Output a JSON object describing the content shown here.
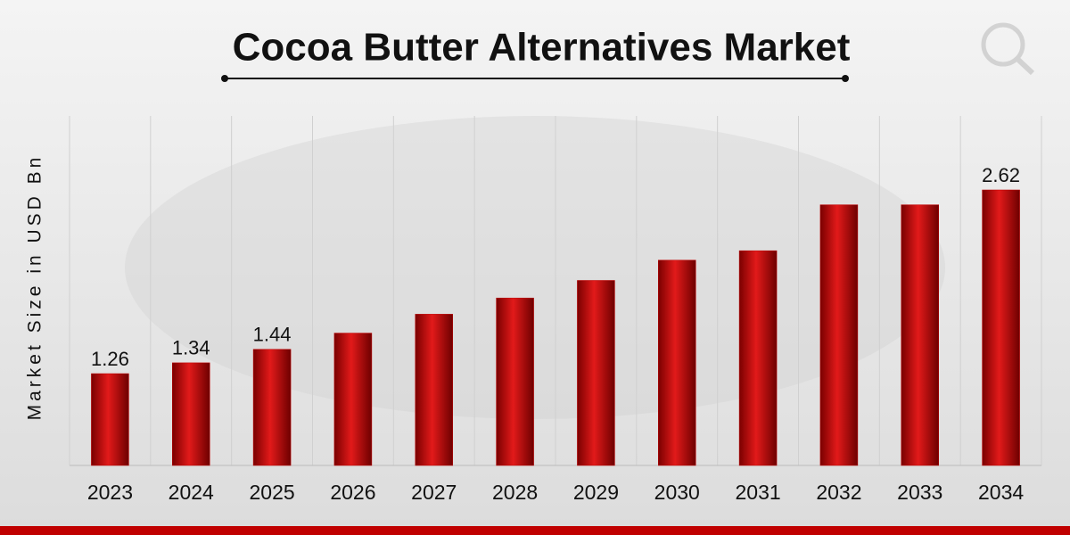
{
  "chart_data": {
    "type": "bar",
    "title": "Cocoa Butter Alternatives Market",
    "y_label": "Market Size in USD Bn",
    "categories": [
      "2023",
      "2024",
      "2025",
      "2026",
      "2027",
      "2028",
      "2029",
      "2030",
      "2031",
      "2032",
      "2033",
      "2034"
    ],
    "values": [
      1.26,
      1.34,
      1.44,
      1.56,
      1.7,
      1.82,
      1.95,
      2.1,
      2.17,
      2.51,
      2.51,
      2.62
    ],
    "value_labels": [
      "1.26",
      "1.34",
      "1.44",
      null,
      null,
      null,
      null,
      null,
      null,
      null,
      null,
      "2.62"
    ],
    "color": "#c00000"
  }
}
